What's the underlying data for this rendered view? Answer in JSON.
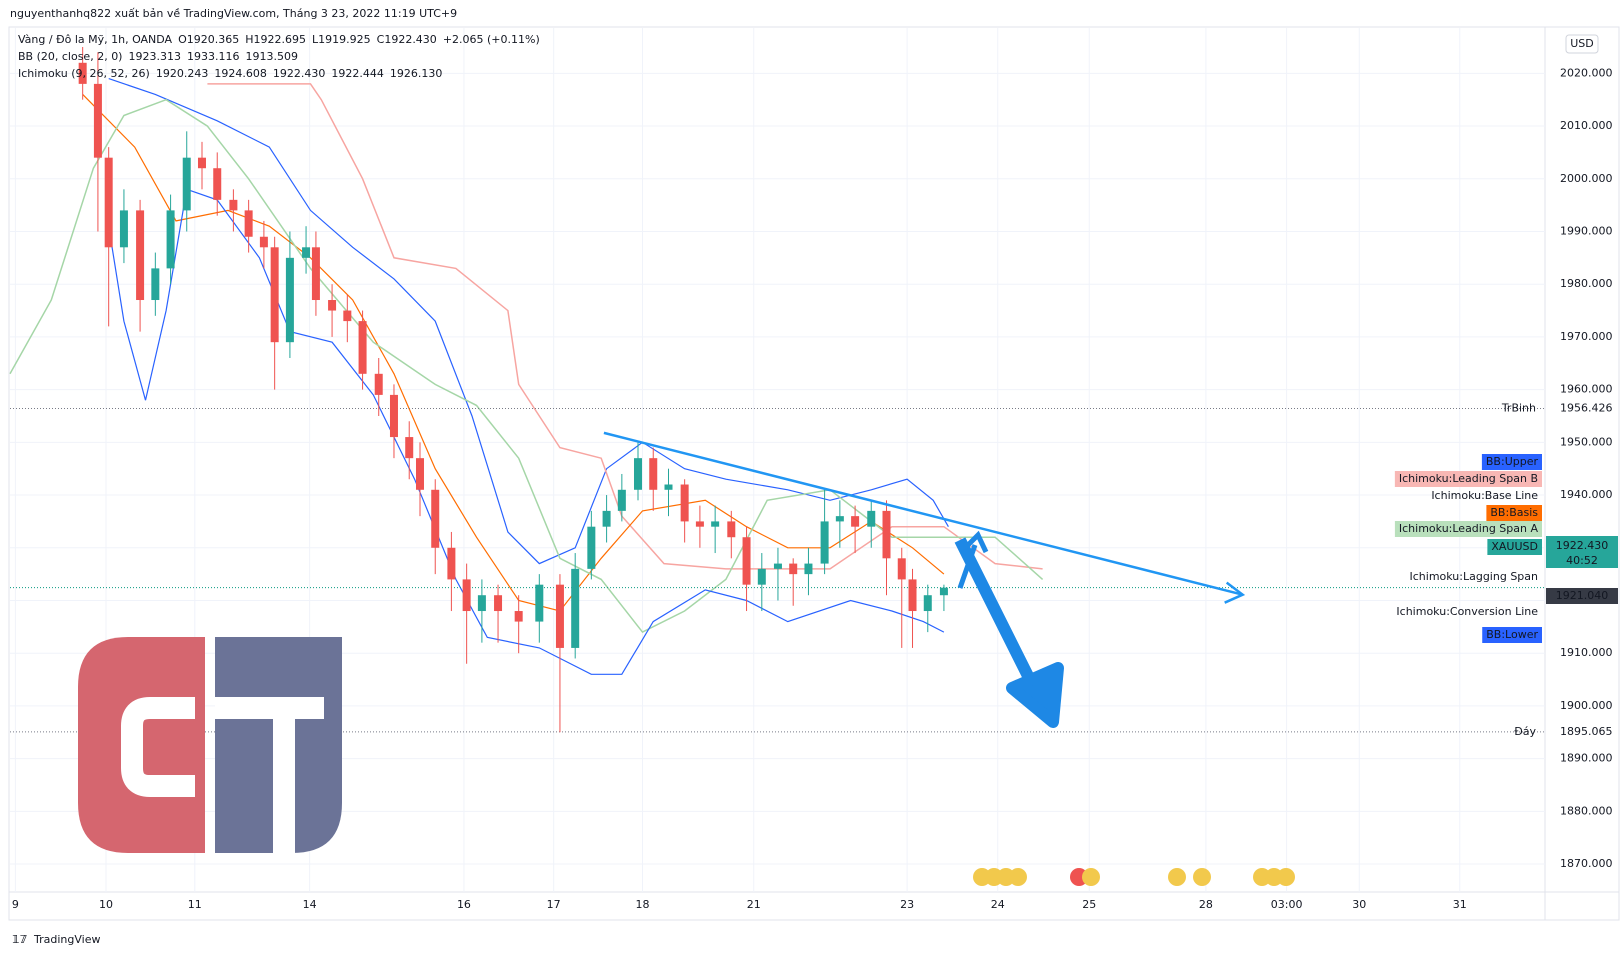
{
  "header": "nguyenthanhq822 xuất bản về TradingView.com, Tháng 3 23, 2022 11:19 UTC+9",
  "footer": "TradingView",
  "currency": "USD",
  "legend": [
    [
      "Vàng / Đô la Mỹ, 1h, OANDA",
      "O1920.365",
      "H1922.695",
      "L1919.925",
      "C1922.430",
      "+2.065 (+0.11%)"
    ],
    [
      "BB (20, close, 2, 0)",
      "1923.313",
      "1933.116",
      "1913.509"
    ],
    [
      "Ichimoku (9, 26, 52, 26)",
      "1920.243",
      "1924.608",
      "1922.430",
      "1922.444",
      "1926.130"
    ]
  ],
  "chart_data": {
    "type": "candlestick",
    "up_color": "#26a69a",
    "down_color": "#ef5350",
    "x": [
      0.75,
      0.92,
      1.04,
      1.21,
      1.39,
      1.56,
      1.73,
      1.91,
      2.08,
      2.25,
      2.43,
      2.6,
      2.77,
      2.89,
      3.06,
      3.24,
      3.35,
      3.53,
      3.7,
      3.87,
      4.05,
      4.22,
      4.39,
      4.51,
      4.68,
      4.86,
      5.03,
      5.2,
      5.38,
      5.61,
      5.84,
      6.07,
      6.24,
      6.42,
      6.59,
      6.76,
      6.94,
      7.11,
      7.28,
      7.46,
      7.63,
      7.8,
      7.98,
      8.15,
      8.32,
      8.5,
      8.67,
      8.84,
      9.02,
      9.19,
      9.36,
      9.54,
      9.71,
      9.88,
      10.0,
      10.17,
      10.35
    ],
    "open": [
      2022,
      2018,
      2004,
      1987,
      1994,
      1977,
      1983,
      1994,
      2004,
      2002,
      1996,
      1994,
      1989,
      1987,
      1969,
      1985,
      1987,
      1977,
      1975,
      1973,
      1963,
      1959,
      1951,
      1947,
      1941,
      1930,
      1924,
      1918,
      1921,
      1918,
      1916,
      1923,
      1911,
      1926,
      1934,
      1937,
      1941,
      1947,
      1941,
      1942,
      1935,
      1934,
      1935,
      1932,
      1923,
      1926,
      1927,
      1925,
      1927,
      1935,
      1936,
      1934,
      1937,
      1928,
      1924,
      1918,
      1921
    ],
    "high": [
      2025,
      2024,
      2006,
      1998,
      1996,
      1986,
      1997,
      2009,
      2007,
      2005,
      1998,
      1996,
      1992,
      1989,
      1990,
      1991,
      1990,
      1980,
      1978,
      1975,
      1966,
      1961,
      1954,
      1950,
      1943,
      1933,
      1927,
      1924,
      1923,
      1921,
      1925,
      1925,
      1929,
      1937,
      1940,
      1944,
      1950,
      1949,
      1945,
      1943,
      1938,
      1938,
      1937,
      1934,
      1929,
      1930,
      1928,
      1930,
      1941,
      1939,
      1938,
      1939,
      1939,
      1930,
      1926,
      1923,
      1923
    ],
    "low": [
      2015,
      1990,
      1972,
      1984,
      1971,
      1974,
      1980,
      1990,
      1998,
      1993,
      1990,
      1986,
      1983,
      1960,
      1966,
      1982,
      1974,
      1970,
      1969,
      1960,
      1955,
      1947,
      1943,
      1936,
      1925,
      1918,
      1908,
      1912,
      1912,
      1910,
      1912,
      1895,
      1909,
      1924,
      1931,
      1935,
      1939,
      1937,
      1936,
      1931,
      1930,
      1929,
      1928,
      1918,
      1918,
      1920,
      1919,
      1921,
      1925,
      1930,
      1929,
      1930,
      1921,
      1911,
      1911,
      1914,
      1918
    ],
    "close": [
      2018,
      2004,
      1987,
      1994,
      1977,
      1983,
      1994,
      2004,
      2002,
      1996,
      1994,
      1989,
      1987,
      1969,
      1985,
      1987,
      1977,
      1975,
      1973,
      1963,
      1959,
      1951,
      1947,
      1941,
      1930,
      1924,
      1918,
      1921,
      1918,
      1916,
      1923,
      1911,
      1926,
      1934,
      1937,
      1941,
      1947,
      1941,
      1942,
      1935,
      1934,
      1935,
      1932,
      1923,
      1926,
      1927,
      1925,
      1927,
      1935,
      1936,
      1934,
      1937,
      1928,
      1924,
      1918,
      1921,
      1922.43
    ],
    "series": [
      {
        "name": "BB:Upper",
        "color": "#2962ff",
        "x": [
          1.04,
          1.56,
          2.25,
          2.83,
          3.29,
          3.76,
          4.22,
          4.68,
          5.09,
          5.49,
          5.84,
          6.24,
          6.59,
          6.99,
          7.46,
          7.92,
          8.61,
          9.08,
          9.54,
          9.94,
          10.23,
          10.4
        ],
        "values": [
          2019,
          2016,
          2011,
          2006,
          1994,
          1987,
          1981,
          1973,
          1955,
          1933,
          1927,
          1930,
          1945,
          1950,
          1945,
          1943,
          1941,
          1939,
          1941,
          1943,
          1939,
          1934
        ]
      },
      {
        "name": "Ichimoku:Leading Span B",
        "color": "#f7a5a1",
        "x": [
          2.14,
          3.29,
          3.41,
          3.87,
          4.22,
          4.91,
          5.49,
          5.61,
          6.07,
          6.53,
          6.76,
          7.23,
          7.92,
          9.08,
          9.77,
          10.35,
          10.92,
          11.45
        ],
        "values": [
          2018,
          2018,
          2015,
          2000,
          1985,
          1983,
          1975,
          1961,
          1949,
          1947,
          1936,
          1927,
          1926,
          1926,
          1934,
          1934,
          1927,
          1926
        ]
      },
      {
        "name": "BB:Basis",
        "color": "#ff6d00",
        "x": [
          0.75,
          1.33,
          1.79,
          2.37,
          2.83,
          3.29,
          3.76,
          4.22,
          4.68,
          5.14,
          5.61,
          6.07,
          6.53,
          6.99,
          7.69,
          8.15,
          8.61,
          9.08,
          9.54,
          10.0,
          10.35
        ],
        "values": [
          2016,
          2006,
          1992,
          1994,
          1991,
          1985,
          1977,
          1963,
          1945,
          1932,
          1920,
          1918,
          1928,
          1937,
          1939,
          1934,
          1930,
          1930,
          1935,
          1930,
          1925
        ]
      },
      {
        "name": "Ichimoku:Leading Span A",
        "color": "#a5d6a7",
        "x": [
          -0.06,
          0.4,
          0.87,
          1.21,
          1.68,
          2.14,
          2.6,
          3.29,
          3.99,
          4.68,
          5.14,
          5.61,
          6.07,
          6.53,
          6.99,
          7.46,
          7.92,
          8.38,
          9.08,
          9.77,
          10.35,
          10.92,
          11.45
        ],
        "values": [
          1963,
          1977,
          2002,
          2012,
          2015,
          2010,
          2000,
          1983,
          1969,
          1961,
          1957,
          1947,
          1928,
          1924,
          1914,
          1918,
          1924,
          1939,
          1941,
          1932,
          1932,
          1932,
          1924
        ]
      },
      {
        "name": "BB:Lower",
        "color": "#2962ff",
        "x": [
          1.04,
          1.21,
          1.45,
          1.68,
          1.91,
          2.25,
          2.72,
          3.06,
          3.53,
          3.99,
          4.45,
          4.91,
          5.26,
          5.84,
          6.42,
          6.76,
          7.11,
          7.69,
          8.15,
          8.61,
          9.31,
          9.77,
          10.12,
          10.35
        ],
        "values": [
          1991,
          1973,
          1958,
          1975,
          1998,
          1996,
          1985,
          1971,
          1969,
          1959,
          1943,
          1924,
          1913,
          1911,
          1906,
          1906,
          1916,
          1922,
          1920,
          1916,
          1920,
          1918,
          1916,
          1914
        ]
      }
    ],
    "other_labels": [
      "Ichimoku:Base Line",
      "Ichimoku:Lagging Span",
      "Ichimoku:Conversion Line"
    ],
    "symbol": "XAUUSD",
    "last_price": {
      "value": 1922.43,
      "label": "1922.430"
    },
    "countdown": "40:52",
    "marker_price": {
      "value": 1921.04,
      "label": "1921.040"
    },
    "horizontal_lines": [
      {
        "name": "TrBinh",
        "value": 1956.426,
        "label": "1956.426"
      },
      {
        "name": "Đáy",
        "value": 1895.065,
        "label": "1895.065"
      }
    ],
    "trendline": {
      "x": [
        6.56,
        13.68
      ],
      "y": [
        1951.8,
        1921.1
      ]
    },
    "xlim": [
      -0.06,
      17.05
    ],
    "xticks": [
      {
        "value": 0,
        "label": "9"
      },
      {
        "value": 1.01,
        "label": "10"
      },
      {
        "value": 2.0,
        "label": "11"
      },
      {
        "value": 3.28,
        "label": "14"
      },
      {
        "value": 5.0,
        "label": "16"
      },
      {
        "value": 6.0,
        "label": "17"
      },
      {
        "value": 6.99,
        "label": "18"
      },
      {
        "value": 8.23,
        "label": "21"
      },
      {
        "value": 9.94,
        "label": "23"
      },
      {
        "value": 10.95,
        "label": "24"
      },
      {
        "value": 11.97,
        "label": "25"
      },
      {
        "value": 13.27,
        "label": "28"
      },
      {
        "value": 14.17,
        "label": "03:00"
      },
      {
        "value": 14.98,
        "label": "30"
      },
      {
        "value": 16.1,
        "label": "31"
      }
    ],
    "ylim": [
      1864.7,
      2028.6
    ],
    "yticks": [
      {
        "value": 2020,
        "label": "2020.000"
      },
      {
        "value": 2010,
        "label": "2010.000"
      },
      {
        "value": 2000,
        "label": "2000.000"
      },
      {
        "value": 1990,
        "label": "1990.000"
      },
      {
        "value": 1980,
        "label": "1980.000"
      },
      {
        "value": 1970,
        "label": "1970.000"
      },
      {
        "value": 1960,
        "label": "1960.000"
      },
      {
        "value": 1950,
        "label": "1950.000"
      },
      {
        "value": 1940,
        "label": "1940.000"
      },
      {
        "value": 1930,
        "label": "1930.000"
      },
      {
        "value": 1920,
        "label": "1920.000"
      },
      {
        "value": 1910,
        "label": "1910.000"
      },
      {
        "value": 1900,
        "label": "1900.000"
      },
      {
        "value": 1890,
        "label": "1890.000"
      },
      {
        "value": 1880,
        "label": "1880.000"
      },
      {
        "value": 1870,
        "label": "1870.000"
      }
    ],
    "grid": true
  }
}
